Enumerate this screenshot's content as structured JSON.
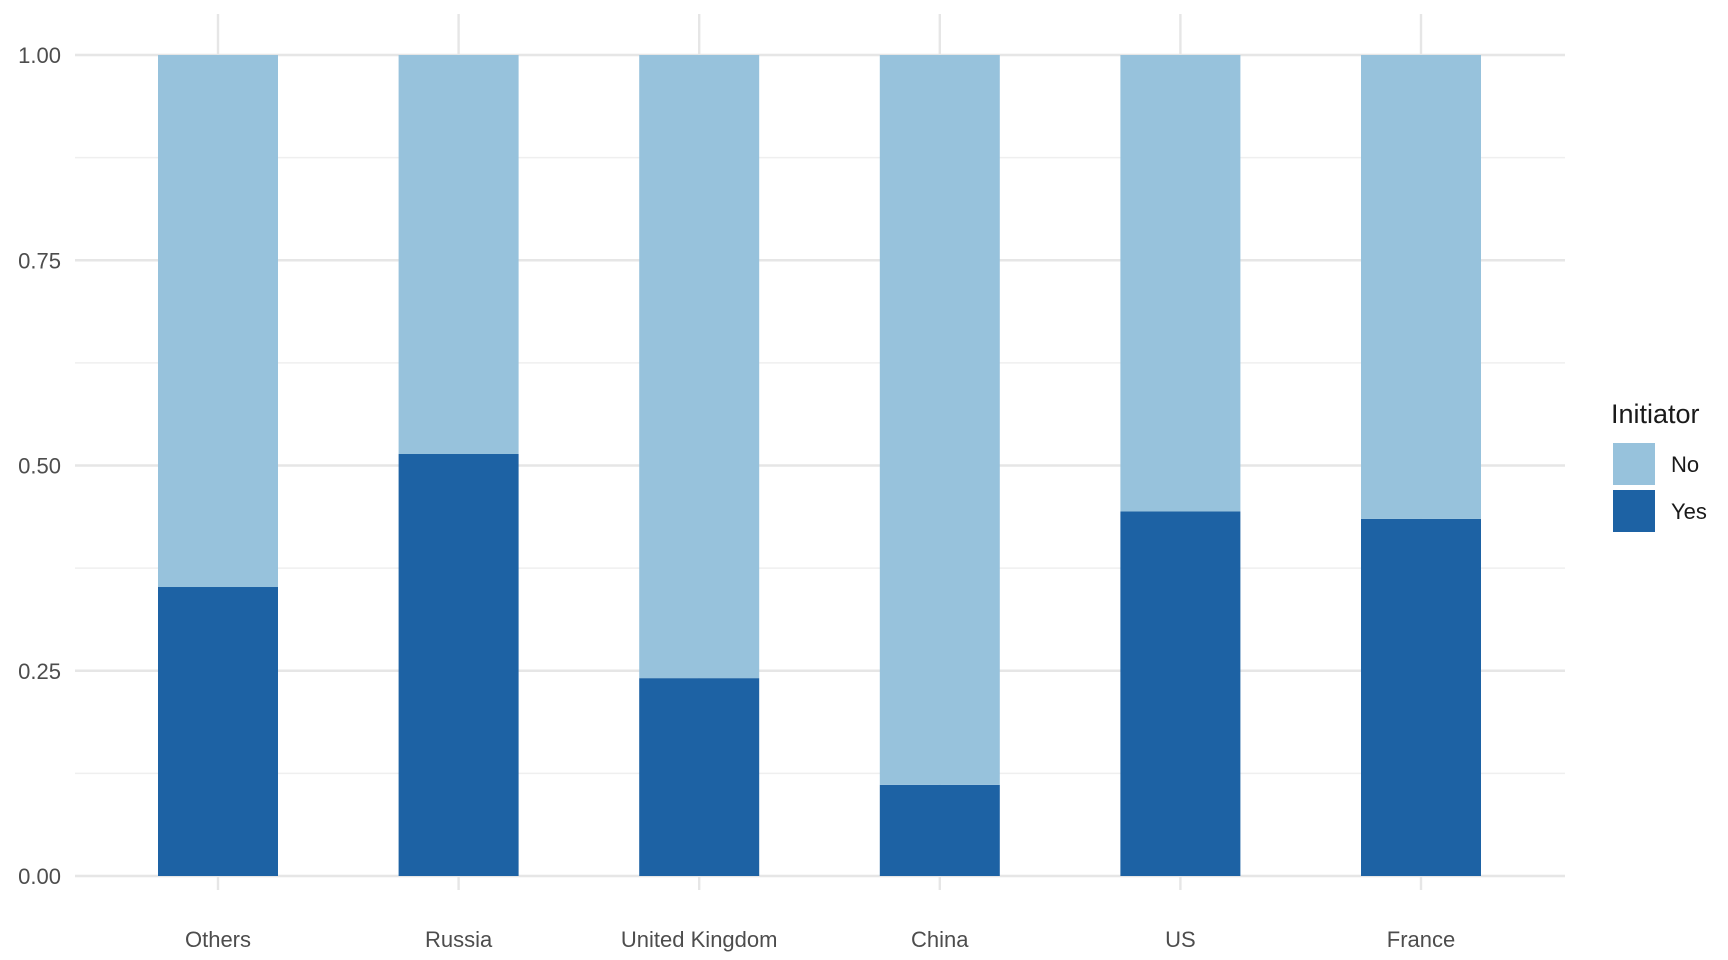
{
  "chart_data": {
    "type": "bar",
    "stacked": true,
    "categories": [
      "Others",
      "Russia",
      "United Kingdom",
      "China",
      "US",
      "France"
    ],
    "series": [
      {
        "name": "No",
        "color": "#97c2dc",
        "values": [
          0.648,
          0.486,
          0.759,
          0.889,
          0.556,
          0.565
        ]
      },
      {
        "name": "Yes",
        "color": "#1d62a4",
        "values": [
          0.352,
          0.514,
          0.241,
          0.111,
          0.444,
          0.435
        ]
      }
    ],
    "ylim": [
      0,
      1
    ],
    "yticks": [
      "0.00",
      "0.25",
      "0.50",
      "0.75",
      "1.00"
    ],
    "ytick_values": [
      0,
      0.25,
      0.5,
      0.75,
      1
    ],
    "grid": true,
    "legend": {
      "title": "Initiator",
      "placement": "right",
      "entries": [
        "No",
        "Yes"
      ]
    }
  }
}
